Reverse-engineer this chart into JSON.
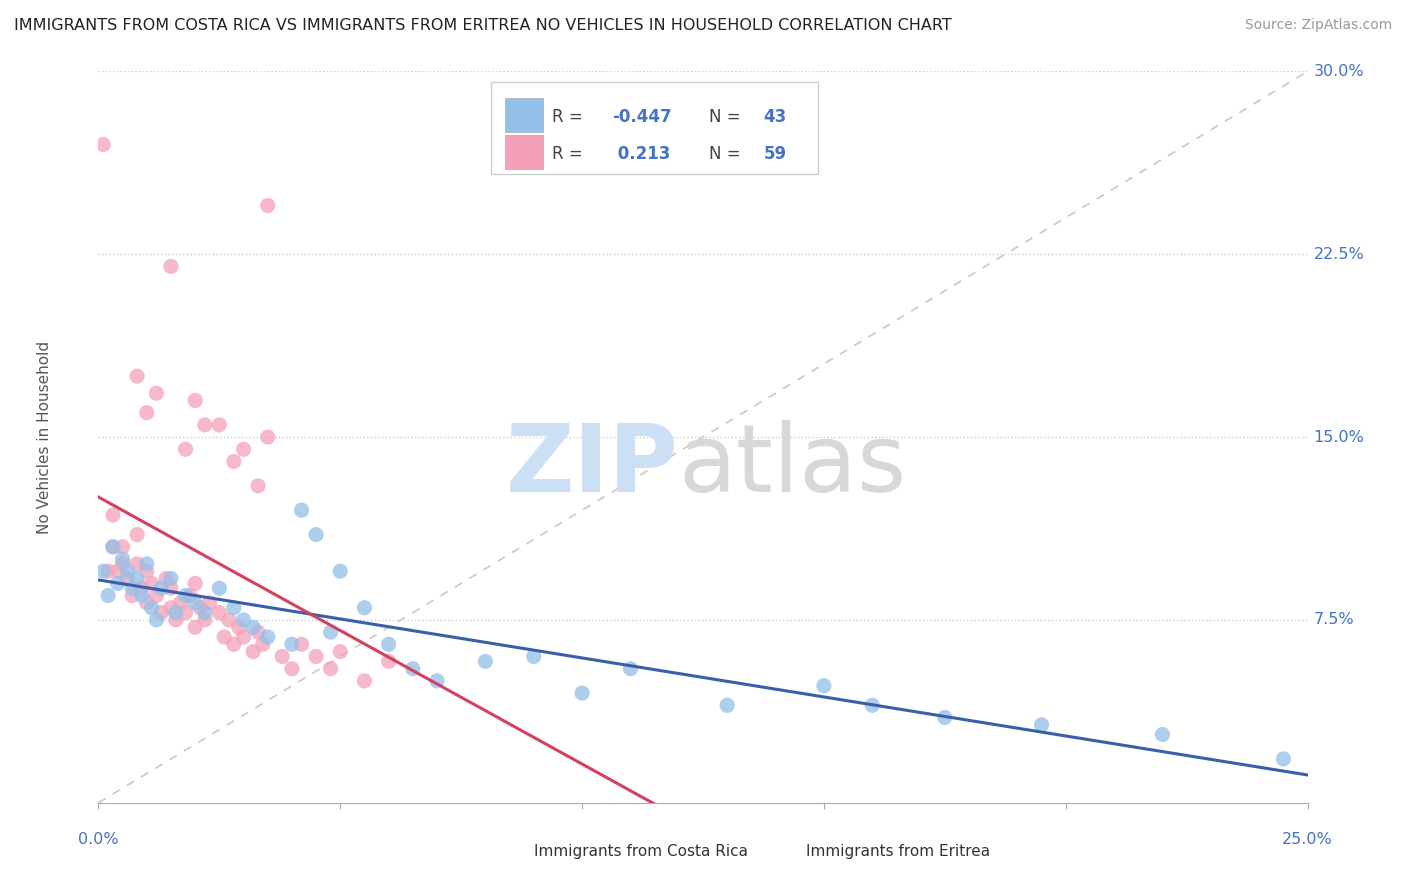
{
  "title": "IMMIGRANTS FROM COSTA RICA VS IMMIGRANTS FROM ERITREA NO VEHICLES IN HOUSEHOLD CORRELATION CHART",
  "source": "Source: ZipAtlas.com",
  "xmin": 0.0,
  "xmax": 0.25,
  "ymin": 0.0,
  "ymax": 0.3,
  "legend_label1": "Immigrants from Costa Rica",
  "legend_label2": "Immigrants from Eritrea",
  "R1": -0.447,
  "N1": 43,
  "R2": 0.213,
  "N2": 59,
  "color_blue": "#92c0e8",
  "color_pink": "#f5a0b8",
  "color_blue_dark": "#4472c4",
  "color_trend_blue": "#3a5faa",
  "color_trend_pink": "#d44060",
  "color_ref_line": "#c8c8c8",
  "background": "#ffffff",
  "costa_rica_x": [
    0.001,
    0.002,
    0.003,
    0.004,
    0.005,
    0.006,
    0.007,
    0.008,
    0.009,
    0.01,
    0.011,
    0.012,
    0.013,
    0.015,
    0.016,
    0.018,
    0.02,
    0.022,
    0.025,
    0.028,
    0.03,
    0.032,
    0.035,
    0.04,
    0.042,
    0.045,
    0.048,
    0.05,
    0.055,
    0.06,
    0.065,
    0.07,
    0.08,
    0.09,
    0.1,
    0.11,
    0.13,
    0.15,
    0.16,
    0.175,
    0.195,
    0.22,
    0.245
  ],
  "costa_rica_y": [
    0.095,
    0.085,
    0.105,
    0.09,
    0.1,
    0.095,
    0.088,
    0.092,
    0.085,
    0.098,
    0.08,
    0.075,
    0.088,
    0.092,
    0.078,
    0.085,
    0.082,
    0.078,
    0.088,
    0.08,
    0.075,
    0.072,
    0.068,
    0.065,
    0.12,
    0.11,
    0.07,
    0.095,
    0.08,
    0.065,
    0.055,
    0.05,
    0.058,
    0.06,
    0.045,
    0.055,
    0.04,
    0.048,
    0.04,
    0.035,
    0.032,
    0.028,
    0.018
  ],
  "eritrea_x": [
    0.001,
    0.002,
    0.003,
    0.003,
    0.004,
    0.005,
    0.005,
    0.006,
    0.007,
    0.008,
    0.008,
    0.009,
    0.01,
    0.01,
    0.011,
    0.012,
    0.013,
    0.014,
    0.015,
    0.015,
    0.016,
    0.017,
    0.018,
    0.019,
    0.02,
    0.02,
    0.021,
    0.022,
    0.023,
    0.025,
    0.026,
    0.027,
    0.028,
    0.029,
    0.03,
    0.032,
    0.033,
    0.034,
    0.035,
    0.038,
    0.04,
    0.042,
    0.045,
    0.048,
    0.05,
    0.055,
    0.06,
    0.035,
    0.025,
    0.03,
    0.015,
    0.02,
    0.01,
    0.008,
    0.012,
    0.018,
    0.022,
    0.028,
    0.033
  ],
  "eritrea_y": [
    0.27,
    0.095,
    0.105,
    0.118,
    0.095,
    0.098,
    0.105,
    0.092,
    0.085,
    0.098,
    0.11,
    0.088,
    0.095,
    0.082,
    0.09,
    0.085,
    0.078,
    0.092,
    0.08,
    0.088,
    0.075,
    0.082,
    0.078,
    0.085,
    0.072,
    0.09,
    0.08,
    0.075,
    0.082,
    0.078,
    0.068,
    0.075,
    0.065,
    0.072,
    0.068,
    0.062,
    0.07,
    0.065,
    0.245,
    0.06,
    0.055,
    0.065,
    0.06,
    0.055,
    0.062,
    0.05,
    0.058,
    0.15,
    0.155,
    0.145,
    0.22,
    0.165,
    0.16,
    0.175,
    0.168,
    0.145,
    0.155,
    0.14,
    0.13
  ],
  "ytick_vals": [
    0.075,
    0.15,
    0.225,
    0.3
  ],
  "ytick_labels": [
    "7.5%",
    "15.0%",
    "22.5%",
    "30.0%"
  ],
  "xtick_vals": [
    0.0,
    0.05,
    0.1,
    0.15,
    0.2,
    0.25
  ]
}
